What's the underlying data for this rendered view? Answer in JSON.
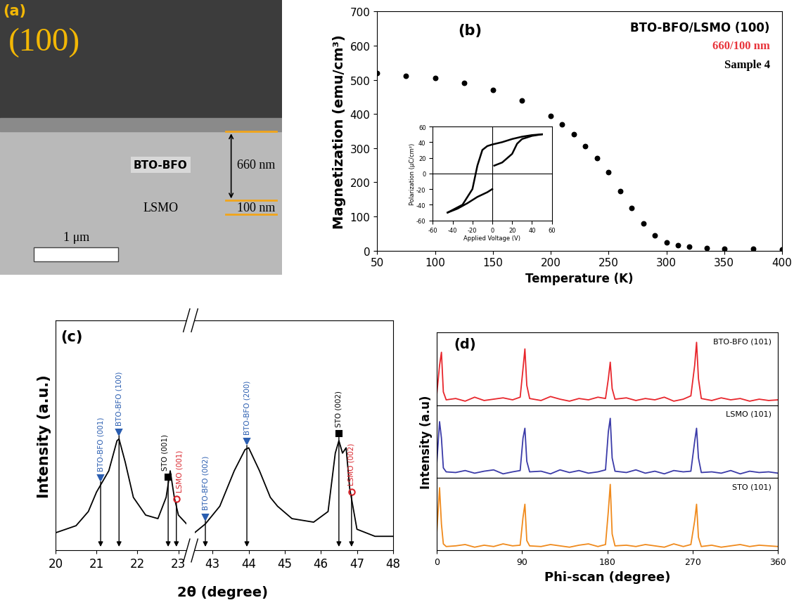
{
  "image_panel": {
    "panel_label": "(a)",
    "plane": "(100)",
    "layers": [
      {
        "name": "BTO-BFO",
        "thickness": "660 nm"
      },
      {
        "name": "LSMO",
        "thickness": "100 nm"
      }
    ],
    "scale_bar": "1 μm"
  },
  "chart_data": [
    {
      "type": "scatter",
      "panel_label": "(b)",
      "title": "BTO-BFO/LSMO (100)",
      "annotations": [
        {
          "text": "660/100 nm",
          "color": "#e8333a"
        },
        {
          "text": "Sample 4",
          "color": "#000000"
        }
      ],
      "x_label": "Temperature (K)",
      "y_label": "Magnetization (emu/cm³)",
      "x": [
        50,
        75,
        100,
        125,
        150,
        175,
        200,
        210,
        220,
        230,
        240,
        250,
        260,
        270,
        280,
        290,
        300,
        310,
        320,
        335,
        350,
        375,
        400
      ],
      "values": [
        520,
        512,
        505,
        490,
        470,
        440,
        395,
        370,
        340,
        305,
        270,
        230,
        175,
        125,
        80,
        45,
        25,
        16,
        12,
        8,
        6,
        5,
        4
      ],
      "color": "#000000",
      "marker": "o",
      "xlim": [
        50,
        400
      ],
      "xticks": [
        50,
        100,
        150,
        200,
        250,
        300,
        350,
        400
      ],
      "ylim": [
        0,
        700
      ],
      "yticks": [
        0,
        100,
        200,
        300,
        400,
        500,
        600,
        700
      ]
    },
    {
      "type": "line",
      "x_label": "Applied Voltage (V)",
      "y_label": "Polarization (μC/cm²)",
      "color": "#000000",
      "series": [
        {
          "x": [
            -45,
            -35,
            -25,
            -15,
            -5,
            0
          ],
          "values": [
            -50,
            -45,
            -38,
            -30,
            -24,
            -20
          ]
        },
        {
          "x": [
            2,
            10,
            20,
            25,
            30,
            40,
            50
          ],
          "values": [
            10,
            14,
            25,
            38,
            44,
            48,
            50
          ]
        },
        {
          "x": [
            50,
            40,
            30,
            20,
            10,
            0,
            -5,
            -10,
            -15,
            -20,
            -30,
            -45
          ],
          "values": [
            50,
            49,
            47,
            44,
            40,
            37,
            35,
            30,
            10,
            -20,
            -40,
            -50
          ]
        }
      ],
      "xlim": [
        -60,
        60
      ],
      "xticks": [
        -60,
        -40,
        -20,
        0,
        20,
        40,
        60
      ],
      "ylim": [
        -60,
        60
      ],
      "yticks": [
        -60,
        -40,
        -20,
        0,
        20,
        40,
        60
      ]
    },
    {
      "type": "line",
      "panel_label": "(c)",
      "x_label": "2θ (degree)",
      "y_label": "Intensity (a.u.)",
      "color": "#000000",
      "x": [
        20.0,
        20.5,
        20.8,
        21.0,
        21.1,
        21.3,
        21.5,
        21.55,
        21.7,
        21.9,
        22.2,
        22.5,
        22.7,
        22.8,
        22.9,
        23.0,
        23.2
      ],
      "values": [
        10,
        14,
        22,
        33,
        37,
        45,
        62,
        63,
        50,
        30,
        20,
        18,
        30,
        45,
        30,
        20,
        15
      ],
      "peaks": [
        {
          "x": 21.1,
          "label": "BTO-BFO (001)",
          "marker": "v",
          "color": "#2a5db0"
        },
        {
          "x": 21.55,
          "label": "BTO-BFO (100)",
          "marker": "v",
          "color": "#2a5db0"
        },
        {
          "x": 22.75,
          "label": "STO (001)",
          "marker": "s",
          "color": "#000000"
        },
        {
          "x": 22.95,
          "label": "LSMO (001)",
          "marker": "o",
          "color": "#d9232a"
        }
      ],
      "tick_labels": "x",
      "xlim": [
        20,
        23.2
      ],
      "xticks": [
        20,
        21,
        22,
        23
      ],
      "ylim": [
        0,
        130
      ]
    },
    {
      "type": "line",
      "color": "#000000",
      "x": [
        42.5,
        42.8,
        43.2,
        43.6,
        43.9,
        44.0,
        44.3,
        44.6,
        44.8,
        45.2,
        45.8,
        46.2,
        46.4,
        46.5,
        46.6,
        46.7,
        46.8,
        47.0,
        47.5,
        48.0
      ],
      "values": [
        10,
        15,
        25,
        45,
        57,
        58,
        45,
        30,
        25,
        18,
        16,
        22,
        55,
        62,
        55,
        58,
        35,
        12,
        8,
        8
      ],
      "peaks": [
        {
          "x": 42.8,
          "label": "BTO-BFO (002)",
          "marker": "v",
          "color": "#2a5db0"
        },
        {
          "x": 43.95,
          "label": "BTO-BFO (200)",
          "marker": "v",
          "color": "#2a5db0"
        },
        {
          "x": 46.5,
          "label": "STO (002)",
          "marker": "s",
          "color": "#000000"
        },
        {
          "x": 46.85,
          "label": "LSMO (002)",
          "marker": "o",
          "color": "#d9232a"
        }
      ],
      "tick_labels": "x",
      "xlim": [
        42.5,
        48
      ],
      "xticks": [
        43,
        44,
        45,
        46,
        47,
        48
      ],
      "ylim": [
        0,
        130
      ]
    },
    {
      "type": "line",
      "panel_label": "(d)",
      "series": [
        {
          "name": "BTO-BFO (101)",
          "color": "#e8262c",
          "x": [
            0,
            3,
            5,
            7,
            10,
            20,
            30,
            40,
            50,
            60,
            70,
            80,
            88,
            91,
            93,
            95,
            98,
            110,
            120,
            130,
            140,
            150,
            160,
            170,
            178,
            181,
            183,
            185,
            188,
            200,
            210,
            220,
            230,
            240,
            250,
            260,
            268,
            272,
            274,
            276,
            279,
            290,
            300,
            310,
            320,
            330,
            340,
            350,
            360
          ],
          "values": [
            15,
            60,
            80,
            20,
            8,
            10,
            6,
            12,
            7,
            9,
            11,
            8,
            12,
            55,
            85,
            30,
            10,
            7,
            13,
            9,
            6,
            10,
            8,
            12,
            10,
            40,
            65,
            25,
            9,
            11,
            7,
            10,
            8,
            12,
            6,
            9,
            14,
            60,
            95,
            40,
            10,
            7,
            11,
            8,
            10,
            6,
            9,
            7,
            8
          ]
        }
      ],
      "tick_labels": false,
      "xlim": [
        0,
        360
      ],
      "xticks": [
        0,
        90,
        180,
        270,
        360
      ],
      "ylim": [
        0,
        110
      ]
    },
    {
      "type": "line",
      "y_label": "Intensity (a.u)",
      "series": [
        {
          "name": "LSMO (101)",
          "color": "#3a3aa8",
          "x": [
            0,
            3,
            5,
            7,
            10,
            20,
            30,
            40,
            50,
            60,
            70,
            80,
            88,
            91,
            93,
            95,
            98,
            110,
            120,
            130,
            140,
            150,
            160,
            170,
            178,
            181,
            183,
            185,
            188,
            200,
            210,
            220,
            230,
            240,
            250,
            260,
            268,
            272,
            274,
            276,
            279,
            290,
            300,
            310,
            320,
            330,
            340,
            350,
            360
          ],
          "values": [
            20,
            85,
            60,
            15,
            9,
            8,
            11,
            7,
            10,
            12,
            6,
            9,
            11,
            60,
            75,
            25,
            9,
            10,
            6,
            12,
            8,
            11,
            7,
            9,
            12,
            70,
            90,
            30,
            10,
            8,
            12,
            7,
            10,
            6,
            11,
            9,
            10,
            55,
            75,
            30,
            8,
            9,
            7,
            11,
            6,
            10,
            8,
            9,
            7
          ]
        }
      ],
      "tick_labels": false,
      "xlim": [
        0,
        360
      ],
      "xticks": [
        0,
        90,
        180,
        270,
        360
      ],
      "ylim": [
        0,
        110
      ]
    },
    {
      "type": "line",
      "x_label": "Phi-scan (degree)",
      "series": [
        {
          "name": "STO (101)",
          "color": "#f08a1c",
          "x": [
            0,
            3,
            5,
            7,
            10,
            20,
            30,
            40,
            50,
            60,
            70,
            80,
            88,
            91,
            93,
            95,
            98,
            110,
            120,
            130,
            140,
            150,
            160,
            170,
            178,
            181,
            183,
            185,
            188,
            200,
            210,
            220,
            230,
            240,
            250,
            260,
            268,
            272,
            274,
            276,
            279,
            290,
            300,
            310,
            320,
            330,
            340,
            350,
            360
          ],
          "values": [
            25,
            95,
            40,
            10,
            6,
            7,
            9,
            5,
            8,
            6,
            10,
            7,
            8,
            50,
            70,
            15,
            7,
            6,
            9,
            7,
            5,
            8,
            10,
            6,
            9,
            60,
            100,
            25,
            7,
            8,
            6,
            9,
            7,
            5,
            10,
            6,
            9,
            45,
            70,
            20,
            6,
            8,
            5,
            7,
            9,
            6,
            8,
            7,
            6
          ]
        }
      ],
      "tick_labels": "x",
      "xlim": [
        0,
        360
      ],
      "xticks": [
        0,
        90,
        180,
        270,
        360
      ],
      "ylim": [
        0,
        110
      ]
    }
  ]
}
